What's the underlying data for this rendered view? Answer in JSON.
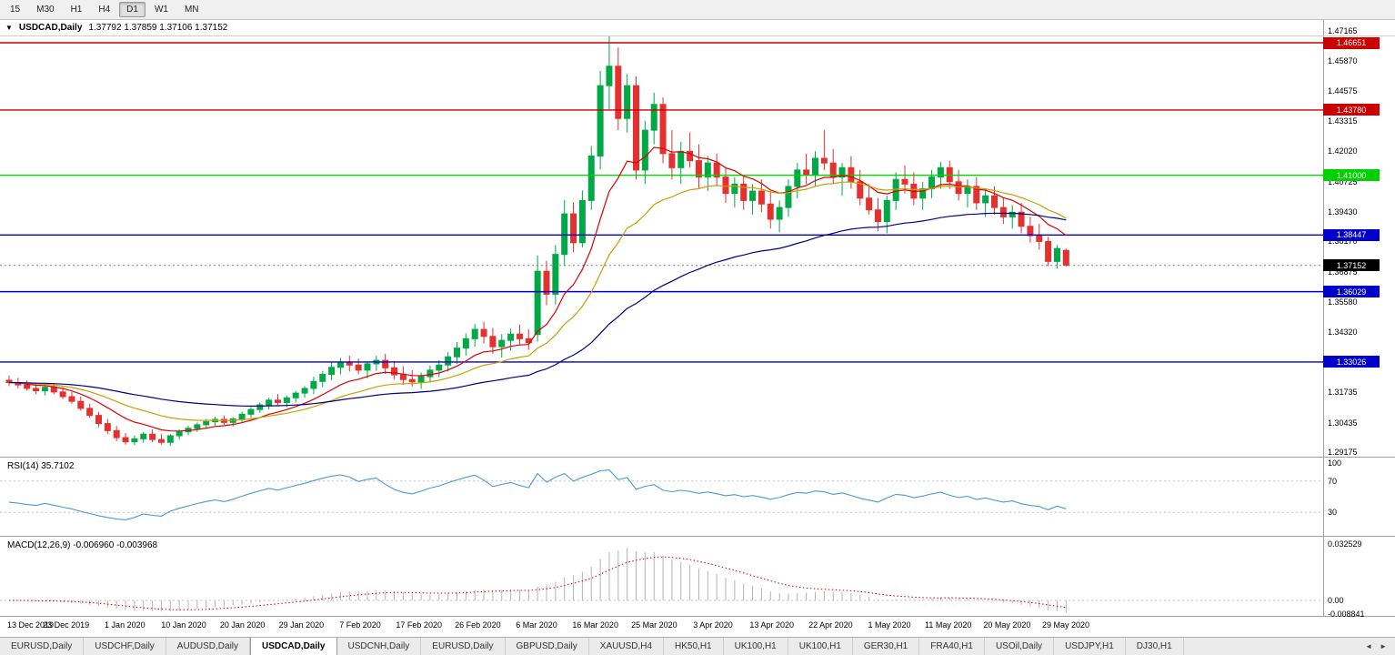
{
  "colors": {
    "up": "#00a846",
    "down": "#e53030",
    "ma_fast": "#dd0000",
    "ma_mid": "#c8a000",
    "ma_slow": "#00008b",
    "hline_red": "#cc0000",
    "hline_green": "#00d200",
    "hline_blue": "#0000cc",
    "current_price_bg": "#000000",
    "rsi_line": "#4a9ad2",
    "level_dotted": "#c0c0c0",
    "macd_hist": "#b4b4b4",
    "macd_signal": "#cc0000",
    "separator": "#a0a0a0",
    "current_line": "#808080"
  },
  "toolbar": {
    "timeframes": [
      "15",
      "M30",
      "H1",
      "H4",
      "D1",
      "W1",
      "MN"
    ],
    "active": "D1"
  },
  "chart": {
    "symbol": "USDCAD,Daily",
    "ohlc": "1.37792 1.37859 1.37106 1.37152",
    "dropdown_icon": "▼",
    "y_axis": [
      "1.47165",
      "1.45870",
      "1.44575",
      "1.43315",
      "1.42020",
      "1.40725",
      "1.39430",
      "1.38170",
      "1.36875",
      "1.35580",
      "1.34320",
      "1.33025",
      "1.31735",
      "1.30435",
      "1.29175"
    ],
    "x_axis": [
      "13 Dec 2019",
      "23 Dec 2019",
      "1 Jan 2020",
      "10 Jan 2020",
      "20 Jan 2020",
      "29 Jan 2020",
      "7 Feb 2020",
      "17 Feb 2020",
      "26 Feb 2020",
      "6 Mar 2020",
      "16 Mar 2020",
      "25 Mar 2020",
      "3 Apr 2020",
      "13 Apr 2020",
      "22 Apr 2020",
      "1 May 2020",
      "11 May 2020",
      "20 May 2020",
      "29 May 2020"
    ],
    "hlines": [
      {
        "label": "1.46651",
        "value": 1.46651,
        "color": "hline_red"
      },
      {
        "label": "1.43780",
        "value": 1.4378,
        "color": "hline_red"
      },
      {
        "label": "1.41000",
        "value": 1.41,
        "color": "hline_green"
      },
      {
        "label": "1.38447",
        "value": 1.38447,
        "color": "hline_blue"
      },
      {
        "label": "1.36029",
        "value": 1.36029,
        "color": "hline_blue"
      },
      {
        "label": "1.33026",
        "value": 1.33026,
        "color": "hline_blue"
      }
    ],
    "current_price": {
      "label": "1.37152",
      "value": 1.37152
    }
  },
  "indicators": {
    "rsi": {
      "label": "RSI(14)",
      "value": "35.7102",
      "period": 14,
      "levels": [
        70,
        30
      ],
      "axis_labels": [
        {
          "label": "100",
          "value": 100
        },
        {
          "label": "70",
          "value": 70
        },
        {
          "label": "30",
          "value": 30
        }
      ]
    },
    "macd": {
      "label": "MACD(12,26,9)",
      "values": "-0.006960 -0.003968",
      "fast": 12,
      "slow": 26,
      "signal": 9,
      "axis_labels": [
        {
          "label": "0.032529",
          "value": 0.032529
        },
        {
          "label": "0.00",
          "value": 0
        },
        {
          "label": "-0.008841",
          "value": -0.008841
        }
      ]
    }
  },
  "chart_data": {
    "type": "candlestick",
    "title": "USDCAD Daily",
    "ylim": [
      1.29175,
      1.47165
    ],
    "moving_averages": [
      {
        "name": "fast",
        "period": 10
      },
      {
        "name": "mid",
        "period": 21
      },
      {
        "name": "slow",
        "period": 55
      }
    ],
    "candles": [
      [
        1.3225,
        1.3245,
        1.32,
        1.3215
      ],
      [
        1.3215,
        1.3235,
        1.319,
        1.3205
      ],
      [
        1.3205,
        1.3225,
        1.318,
        1.319
      ],
      [
        1.319,
        1.3215,
        1.3165,
        1.318
      ],
      [
        1.318,
        1.3205,
        1.316,
        1.3195
      ],
      [
        1.3195,
        1.321,
        1.3165,
        1.3175
      ],
      [
        1.3175,
        1.3195,
        1.3145,
        1.3155
      ],
      [
        1.3155,
        1.3175,
        1.3125,
        1.3135
      ],
      [
        1.3135,
        1.3155,
        1.3095,
        1.3105
      ],
      [
        1.3105,
        1.3125,
        1.3065,
        1.3075
      ],
      [
        1.3075,
        1.309,
        1.3025,
        1.304
      ],
      [
        1.304,
        1.306,
        1.2995,
        1.301
      ],
      [
        1.301,
        1.303,
        1.2965,
        1.298
      ],
      [
        1.298,
        1.3,
        1.295,
        1.2962
      ],
      [
        1.2962,
        1.299,
        1.2948,
        1.2975
      ],
      [
        1.2975,
        1.3005,
        1.2958,
        1.2995
      ],
      [
        1.2995,
        1.3015,
        1.296,
        1.2972
      ],
      [
        1.2972,
        1.2995,
        1.295,
        1.296
      ],
      [
        1.296,
        1.2995,
        1.2945,
        1.2988
      ],
      [
        1.2988,
        1.3015,
        1.2972,
        1.3005
      ],
      [
        1.3005,
        1.303,
        1.299,
        1.302
      ],
      [
        1.302,
        1.3045,
        1.3005,
        1.3035
      ],
      [
        1.3035,
        1.306,
        1.3018,
        1.3048
      ],
      [
        1.3048,
        1.307,
        1.303,
        1.3058
      ],
      [
        1.3058,
        1.3075,
        1.3035,
        1.3045
      ],
      [
        1.3045,
        1.3068,
        1.3028,
        1.306
      ],
      [
        1.306,
        1.309,
        1.3045,
        1.308
      ],
      [
        1.308,
        1.311,
        1.3065,
        1.31
      ],
      [
        1.31,
        1.313,
        1.3085,
        1.312
      ],
      [
        1.312,
        1.315,
        1.31,
        1.314
      ],
      [
        1.314,
        1.3165,
        1.3115,
        1.313
      ],
      [
        1.313,
        1.316,
        1.311,
        1.315
      ],
      [
        1.315,
        1.318,
        1.313,
        1.317
      ],
      [
        1.317,
        1.32,
        1.315,
        1.319
      ],
      [
        1.319,
        1.324,
        1.3165,
        1.322
      ],
      [
        1.322,
        1.3265,
        1.3195,
        1.325
      ],
      [
        1.325,
        1.33,
        1.3225,
        1.328
      ],
      [
        1.328,
        1.332,
        1.325,
        1.33
      ],
      [
        1.33,
        1.333,
        1.3262,
        1.329
      ],
      [
        1.329,
        1.3318,
        1.325,
        1.3268
      ],
      [
        1.3268,
        1.3305,
        1.3232,
        1.3295
      ],
      [
        1.3295,
        1.333,
        1.3265,
        1.331
      ],
      [
        1.331,
        1.3338,
        1.3252,
        1.3278
      ],
      [
        1.3278,
        1.3308,
        1.323,
        1.3248
      ],
      [
        1.3248,
        1.3285,
        1.3205,
        1.3228
      ],
      [
        1.3228,
        1.3268,
        1.3198,
        1.3218
      ],
      [
        1.3218,
        1.3258,
        1.3188,
        1.324
      ],
      [
        1.324,
        1.3288,
        1.3215,
        1.3268
      ],
      [
        1.3268,
        1.331,
        1.3238,
        1.329
      ],
      [
        1.329,
        1.3345,
        1.3262,
        1.3325
      ],
      [
        1.3325,
        1.3388,
        1.3295,
        1.3362
      ],
      [
        1.3362,
        1.3425,
        1.333,
        1.3402
      ],
      [
        1.3402,
        1.3465,
        1.3368,
        1.3442
      ],
      [
        1.3442,
        1.3475,
        1.3382,
        1.3412
      ],
      [
        1.3412,
        1.3448,
        1.3338,
        1.3368
      ],
      [
        1.3368,
        1.3422,
        1.3322,
        1.3395
      ],
      [
        1.3395,
        1.3445,
        1.3352,
        1.3422
      ],
      [
        1.3422,
        1.3462,
        1.3378,
        1.3402
      ],
      [
        1.3402,
        1.3442,
        1.3355,
        1.3385
      ],
      [
        1.342,
        1.3758,
        1.339,
        1.369
      ],
      [
        1.369,
        1.3735,
        1.3545,
        1.3592
      ],
      [
        1.3592,
        1.3802,
        1.3548,
        1.3762
      ],
      [
        1.3762,
        1.3995,
        1.3712,
        1.3935
      ],
      [
        1.3935,
        1.3985,
        1.3772,
        1.3812
      ],
      [
        1.3812,
        1.4035,
        1.3792,
        1.3992
      ],
      [
        1.3992,
        1.4225,
        1.3952,
        1.4182
      ],
      [
        1.4182,
        1.4545,
        1.4125,
        1.4482
      ],
      [
        1.4482,
        1.4692,
        1.4382,
        1.4565
      ],
      [
        1.4565,
        1.4645,
        1.4292,
        1.4342
      ],
      [
        1.4342,
        1.4532,
        1.4282,
        1.4482
      ],
      [
        1.4482,
        1.4522,
        1.4082,
        1.4122
      ],
      [
        1.4122,
        1.4332,
        1.4062,
        1.4292
      ],
      [
        1.4292,
        1.4452,
        1.4232,
        1.4402
      ],
      [
        1.4402,
        1.4432,
        1.4152,
        1.4192
      ],
      [
        1.4192,
        1.4292,
        1.4082,
        1.4132
      ],
      [
        1.4132,
        1.4242,
        1.4062,
        1.4202
      ],
      [
        1.4202,
        1.4282,
        1.4132,
        1.4162
      ],
      [
        1.4162,
        1.4232,
        1.4042,
        1.4092
      ],
      [
        1.4092,
        1.4182,
        1.4032,
        1.4152
      ],
      [
        1.4152,
        1.4192,
        1.4052,
        1.4092
      ],
      [
        1.4092,
        1.4132,
        1.3982,
        1.4022
      ],
      [
        1.4022,
        1.4092,
        1.3962,
        1.4062
      ],
      [
        1.4062,
        1.4102,
        1.3952,
        1.3992
      ],
      [
        1.3992,
        1.4062,
        1.3932,
        1.4032
      ],
      [
        1.4032,
        1.4082,
        1.3942,
        1.3977
      ],
      [
        1.3977,
        1.4032,
        1.3872,
        1.3912
      ],
      [
        1.3912,
        1.3992,
        1.3857,
        1.3962
      ],
      [
        1.3962,
        1.4082,
        1.3922,
        1.4052
      ],
      [
        1.4052,
        1.4152,
        1.4002,
        1.4122
      ],
      [
        1.4122,
        1.4192,
        1.4062,
        1.4102
      ],
      [
        1.4102,
        1.4202,
        1.4052,
        1.4172
      ],
      [
        1.4172,
        1.4292,
        1.4122,
        1.4152
      ],
      [
        1.4152,
        1.4212,
        1.4062,
        1.4092
      ],
      [
        1.4092,
        1.4152,
        1.4012,
        1.4132
      ],
      [
        1.4132,
        1.4182,
        1.4042,
        1.4072
      ],
      [
        1.4072,
        1.4122,
        1.3972,
        1.4002
      ],
      [
        1.4002,
        1.4062,
        1.3932,
        1.3952
      ],
      [
        1.3952,
        1.4002,
        1.3862,
        1.3902
      ],
      [
        1.3902,
        1.4012,
        1.3852,
        1.3992
      ],
      [
        1.3992,
        1.4112,
        1.3952,
        1.4082
      ],
      [
        1.4082,
        1.4142,
        1.4022,
        1.4062
      ],
      [
        1.4062,
        1.4112,
        1.3972,
        1.4002
      ],
      [
        1.4002,
        1.4072,
        1.3952,
        1.4042
      ],
      [
        1.4042,
        1.4122,
        1.4002,
        1.4092
      ],
      [
        1.4092,
        1.4157,
        1.4042,
        1.4132
      ],
      [
        1.4132,
        1.4162,
        1.4042,
        1.4072
      ],
      [
        1.4072,
        1.4122,
        1.3992,
        1.4022
      ],
      [
        1.4022,
        1.4082,
        1.3962,
        1.4052
      ],
      [
        1.4052,
        1.4092,
        1.3952,
        1.3982
      ],
      [
        1.3982,
        1.4042,
        1.3922,
        1.4012
      ],
      [
        1.4012,
        1.4052,
        1.3932,
        1.3962
      ],
      [
        1.3962,
        1.4002,
        1.3892,
        1.3922
      ],
      [
        1.3922,
        1.3972,
        1.3872,
        1.3942
      ],
      [
        1.3942,
        1.3982,
        1.3852,
        1.3882
      ],
      [
        1.3882,
        1.3922,
        1.3812,
        1.3842
      ],
      [
        1.3842,
        1.3892,
        1.3782,
        1.3817
      ],
      [
        1.3817,
        1.3837,
        1.3712,
        1.3732
      ],
      [
        1.3732,
        1.3802,
        1.3702,
        1.3787
      ],
      [
        1.37792,
        1.37859,
        1.37106,
        1.37152
      ]
    ]
  },
  "tabs": {
    "items": [
      "EURUSD,Daily",
      "USDCHF,Daily",
      "AUDUSD,Daily",
      "USDCAD,Daily",
      "USDCNH,Daily",
      "EURUSD,Daily",
      "GBPUSD,Daily",
      "XAUUSD,H4",
      "HK50,H1",
      "UK100,H1",
      "UK100,H1",
      "GER30,H1",
      "FRA40,H1",
      "USOil,Daily",
      "USDJPY,H1",
      "DJ30,H1"
    ],
    "active_index": 3,
    "scroll_left_icon": "◄",
    "scroll_right_icon": "►"
  }
}
